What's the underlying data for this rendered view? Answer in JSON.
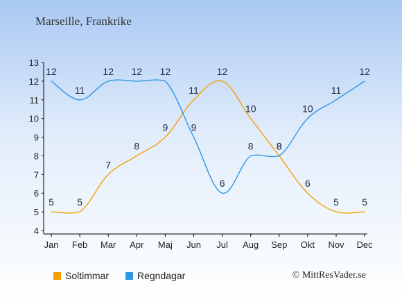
{
  "title": "Marseille, Frankrike",
  "copyright": "© MittResVader.se",
  "chart_data": {
    "type": "line",
    "categories": [
      "Jan",
      "Feb",
      "Mar",
      "Apr",
      "Maj",
      "Jun",
      "Jul",
      "Aug",
      "Sep",
      "Okt",
      "Nov",
      "Dec"
    ],
    "ylim": [
      4,
      13
    ],
    "yticks": [
      "4",
      "5",
      "6",
      "7",
      "8",
      "9",
      "10",
      "11",
      "12",
      "13"
    ],
    "grid": false,
    "legend_position": "bottom-left",
    "series": [
      {
        "name": "Soltimmar",
        "color": "#f5a000",
        "values": [
          5,
          5,
          7,
          8,
          9,
          11,
          12,
          10,
          8,
          6,
          5,
          5
        ]
      },
      {
        "name": "Regndagar",
        "color": "#2f95e5",
        "values": [
          12,
          11,
          12,
          12,
          12,
          9,
          6,
          8,
          8,
          10,
          11,
          12
        ]
      }
    ]
  }
}
